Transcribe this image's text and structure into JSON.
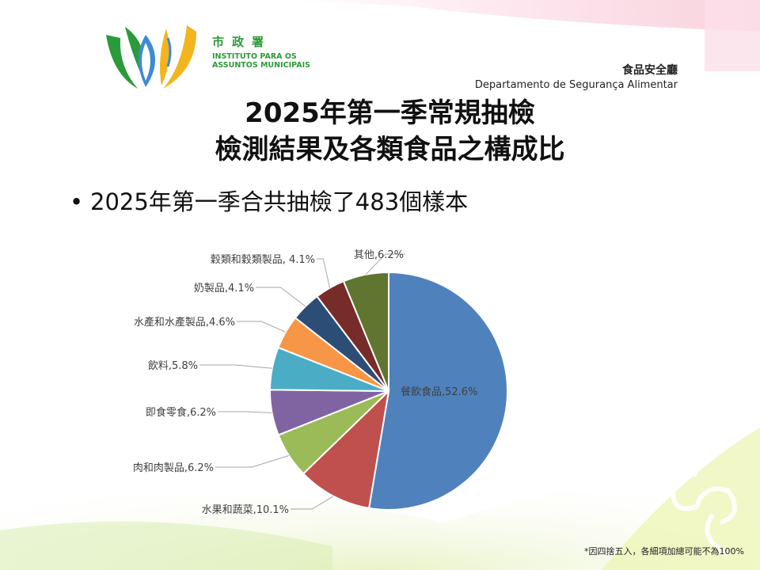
{
  "logo": {
    "org_cn": "市政署",
    "org_pt_line1": "INSTITUTO PARA OS",
    "org_pt_line2": "ASSUNTOS MUNICIPAIS"
  },
  "department": {
    "cn": "食品安全廳",
    "pt": "Departamento de Segurança Alimentar"
  },
  "title": {
    "line1": "2025年第一季常規抽檢",
    "line2": "檢測結果及各類食品之構成比"
  },
  "bullet": {
    "symbol": "•",
    "text": "2025年第一季合共抽檢了483個樣本"
  },
  "chart_data": {
    "type": "pie",
    "title": "",
    "slices": [
      {
        "label": "餐飲食品,52.6%",
        "value": 52.6,
        "color": "#4f81bd"
      },
      {
        "label": "水果和蔬菜,10.1%",
        "value": 10.1,
        "color": "#c0504d"
      },
      {
        "label": "肉和肉製品,6.2%",
        "value": 6.2,
        "color": "#9bbb59"
      },
      {
        "label": "即食零食,6.2%",
        "value": 6.2,
        "color": "#8064a2"
      },
      {
        "label": "飲料,5.8%",
        "value": 5.8,
        "color": "#4bacc6"
      },
      {
        "label": "水產和水產製品,4.6%",
        "value": 4.6,
        "color": "#f79646"
      },
      {
        "label": "奶製品,4.1%",
        "value": 4.1,
        "color": "#2c4d75"
      },
      {
        "label": "穀類和穀類製品, 4.1%",
        "value": 4.1,
        "color": "#772c2a"
      },
      {
        "label": "其他,6.2%",
        "value": 6.2,
        "color": "#5f7530"
      }
    ]
  },
  "footnote": "*因四捨五入，各細項加總可能不為100%"
}
